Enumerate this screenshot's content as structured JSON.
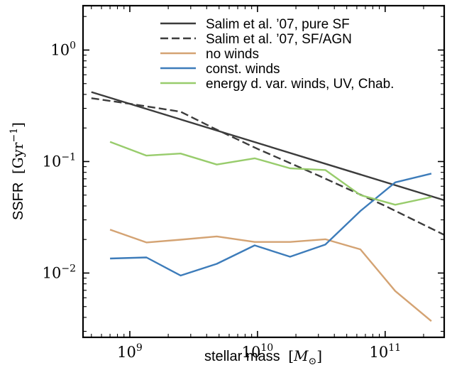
{
  "chart_data": {
    "type": "line",
    "title": "",
    "xlabel": "stellar mass",
    "xlabel_unit_parts": [
      "[",
      "M",
      "⊙",
      "]"
    ],
    "ylabel": "SSFR",
    "ylabel_unit_parts": [
      "[",
      "Gyr",
      "−1",
      "]"
    ],
    "xscale": "log",
    "yscale": "log",
    "xlim": [
      430000000.0,
      290000000000.0
    ],
    "ylim": [
      0.00265,
      2.5
    ],
    "x_ticks": [
      {
        "value": 1000000000.0,
        "base": "10",
        "exp": "9"
      },
      {
        "value": 10000000000.0,
        "base": "10",
        "exp": "10"
      },
      {
        "value": 100000000000.0,
        "base": "10",
        "exp": "11"
      }
    ],
    "y_ticks": [
      {
        "value": 0.01,
        "base": "10",
        "exp": "−2"
      },
      {
        "value": 0.1,
        "base": "10",
        "exp": "−1"
      },
      {
        "value": 1,
        "base": "10",
        "exp": "0"
      }
    ],
    "grid": false,
    "legend_position": "top-right",
    "series": [
      {
        "name": "Salim et al. ’07, pure SF",
        "color": "#3c3c3c",
        "dash": "solid",
        "x": [
          500000000.0,
          290000000000.0
        ],
        "y": [
          0.42,
          0.045
        ]
      },
      {
        "name": "Salim et al. ’07, SF/AGN",
        "color": "#3c3c3c",
        "dash": "dashed",
        "x": [
          500000000.0,
          1000000000.0,
          2500000000.0,
          4500000000.0,
          10000000000.0,
          30000000000.0,
          100000000000.0,
          290000000000.0
        ],
        "y": [
          0.37,
          0.33,
          0.28,
          0.2,
          0.13,
          0.075,
          0.04,
          0.022
        ]
      },
      {
        "name": "no winds",
        "color": "#d4a373",
        "dash": "solid",
        "x": [
          700000000.0,
          1350000000.0,
          2500000000.0,
          4800000000.0,
          9500000000.0,
          18000000000.0,
          34000000000.0,
          64000000000.0,
          120000000000.0,
          230000000000.0
        ],
        "y": [
          0.0245,
          0.0188,
          0.0199,
          0.0213,
          0.019,
          0.019,
          0.0201,
          0.0163,
          0.0069,
          0.0037
        ]
      },
      {
        "name": "const. winds",
        "color": "#3d7cba",
        "dash": "solid",
        "x": [
          700000000.0,
          1350000000.0,
          2500000000.0,
          4800000000.0,
          9500000000.0,
          18000000000.0,
          34000000000.0,
          64000000000.0,
          120000000000.0,
          230000000000.0
        ],
        "y": [
          0.0135,
          0.0138,
          0.0095,
          0.0121,
          0.0177,
          0.014,
          0.018,
          0.036,
          0.065,
          0.078
        ]
      },
      {
        "name": "energy d. var. winds, UV, Chab.",
        "color": "#98cc6c",
        "dash": "solid",
        "x": [
          700000000.0,
          1350000000.0,
          2500000000.0,
          4800000000.0,
          9500000000.0,
          18000000000.0,
          34000000000.0,
          64000000000.0,
          120000000000.0,
          230000000000.0
        ],
        "y": [
          0.15,
          0.113,
          0.118,
          0.094,
          0.107,
          0.087,
          0.084,
          0.05,
          0.041,
          0.048
        ]
      }
    ]
  }
}
